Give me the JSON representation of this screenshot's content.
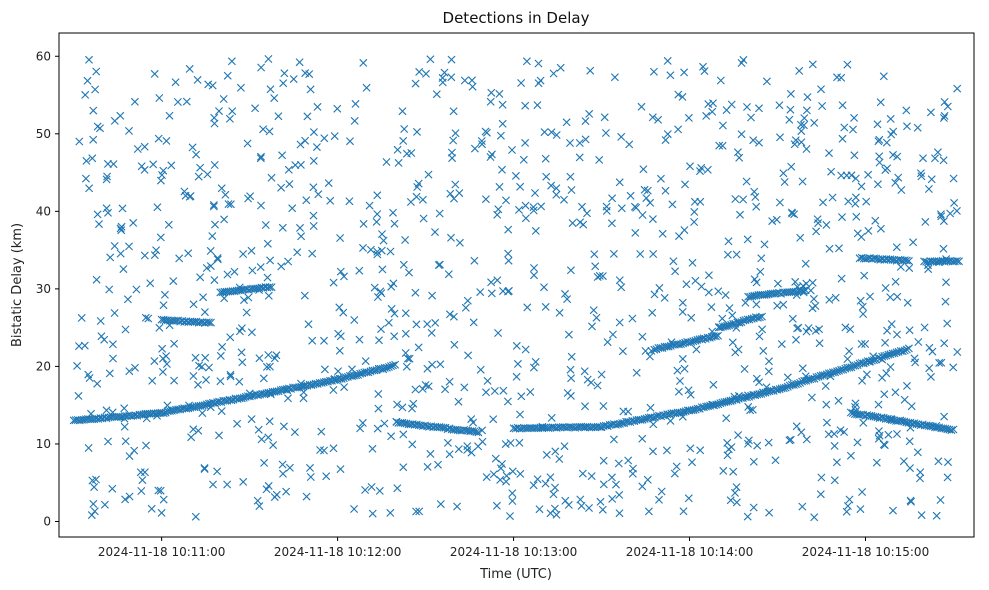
{
  "chart_data": {
    "type": "scatter",
    "title": "Detections in Delay",
    "xlabel": "Time (UTC)",
    "ylabel": "Bistatic Delay (km)",
    "xlim": [
      "2024-11-18 10:10:25",
      "2024-11-18 10:15:37"
    ],
    "ylim": [
      -2,
      63
    ],
    "x_ticks": [
      "2024-11-18 10:11:00",
      "2024-11-18 10:12:00",
      "2024-11-18 10:13:00",
      "2024-11-18 10:14:00",
      "2024-11-18 10:15:00"
    ],
    "y_ticks": [
      0,
      10,
      20,
      30,
      40,
      50,
      60
    ],
    "marker": "x",
    "color": "#1f77b4",
    "grid": false,
    "tracks": [
      {
        "start": "2024-11-18 10:10:30",
        "end": "2024-11-18 10:11:00",
        "y_start": 13.0,
        "y_end": 14.0
      },
      {
        "start": "2024-11-18 10:11:00",
        "end": "2024-11-18 10:12:00",
        "y_start": 14.0,
        "y_end": 18.3
      },
      {
        "start": "2024-11-18 10:12:00",
        "end": "2024-11-18 10:12:20",
        "y_start": 18.3,
        "y_end": 20.2
      },
      {
        "start": "2024-11-18 10:12:20",
        "end": "2024-11-18 10:12:48",
        "y_start": 12.8,
        "y_end": 11.5
      },
      {
        "start": "2024-11-18 10:13:00",
        "end": "2024-11-18 10:13:30",
        "y_start": 12.0,
        "y_end": 12.2
      },
      {
        "start": "2024-11-18 10:13:30",
        "end": "2024-11-18 10:14:00",
        "y_start": 12.2,
        "y_end": 14.3
      },
      {
        "start": "2024-11-18 10:14:00",
        "end": "2024-11-18 10:14:30",
        "y_start": 14.3,
        "y_end": 17.0
      },
      {
        "start": "2024-11-18 10:14:30",
        "end": "2024-11-18 10:15:15",
        "y_start": 17.0,
        "y_end": 22.3
      },
      {
        "start": "2024-11-18 10:11:00",
        "end": "2024-11-18 10:11:17",
        "y_start": 26.0,
        "y_end": 25.6
      },
      {
        "start": "2024-11-18 10:11:20",
        "end": "2024-11-18 10:11:38",
        "y_start": 29.5,
        "y_end": 30.3
      },
      {
        "start": "2024-11-18 10:14:20",
        "end": "2024-11-18 10:14:40",
        "y_start": 29.0,
        "y_end": 29.8
      },
      {
        "start": "2024-11-18 10:14:58",
        "end": "2024-11-18 10:15:15",
        "y_start": 34.0,
        "y_end": 33.6
      },
      {
        "start": "2024-11-18 10:15:20",
        "end": "2024-11-18 10:15:32",
        "y_start": 33.5,
        "y_end": 33.6
      },
      {
        "start": "2024-11-18 10:14:55",
        "end": "2024-11-18 10:15:30",
        "y_start": 14.0,
        "y_end": 11.8
      },
      {
        "start": "2024-11-18 10:13:48",
        "end": "2024-11-18 10:14:10",
        "y_start": 22.2,
        "y_end": 24.0
      },
      {
        "start": "2024-11-18 10:14:10",
        "end": "2024-11-18 10:14:25",
        "y_start": 25.0,
        "y_end": 26.5
      }
    ],
    "clutter": {
      "count": 1150,
      "y_range": [
        0.5,
        59.8
      ]
    }
  }
}
